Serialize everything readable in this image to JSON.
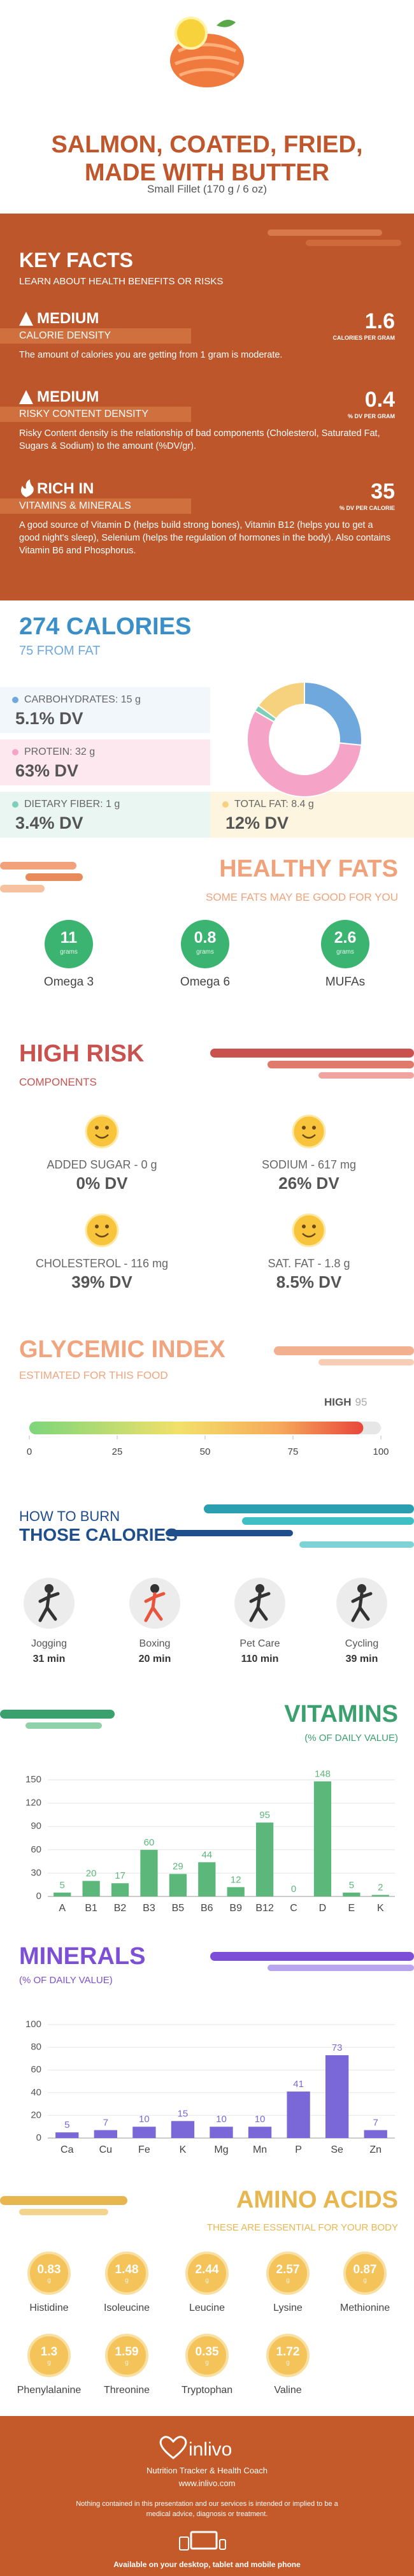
{
  "header": {
    "title": "SALMON, COATED, FRIED, MADE WITH BUTTER",
    "serving": "Small Fillet (170 g / 6 oz)"
  },
  "key_facts": {
    "title": "KEY FACTS",
    "subtitle": "LEARN ABOUT HEALTH BENEFITS OR RISKS",
    "items": [
      {
        "level": "MEDIUM",
        "name": "CALORIE DENSITY",
        "value": 1.6,
        "unit": "CALORIES PER GRAM",
        "text": "The amount of calories you are getting from 1 gram is moderate."
      },
      {
        "level": "MEDIUM",
        "name": "RISKY CONTENT DENSITY",
        "value": 0.4,
        "unit": "% DV PER GRAM",
        "text": "Risky Content density is the relationship of bad components (Cholesterol, Saturated Fat, Sugars & Sodium) to the amount (%DV/gr)."
      },
      {
        "level": "RICH IN",
        "name": "VITAMINS & MINERALS",
        "value": 35,
        "unit": "% DV PER CALORIE",
        "text": "A good source of Vitamin D (helps build strong bones), Vitamin B12 (helps you to get a good night's sleep), Selenium (helps the regulation of hormones in the body). Also contains Vitamin B6 and Phosphorus."
      }
    ]
  },
  "calories": {
    "title": "274 CALORIES",
    "subtitle": "75 FROM FAT",
    "nutrients": [
      {
        "label": "CARBOHYDRATES: 15 g",
        "grams": 15,
        "dv": "5.1% DV",
        "color": "#6ea8dc"
      },
      {
        "label": "PROTEIN: 32 g",
        "grams": 32,
        "dv": "63% DV",
        "color": "#f5a3c7"
      },
      {
        "label": "DIETARY FIBER: 1 g",
        "grams": 1,
        "dv": "3.4% DV",
        "color": "#7fcfb8"
      },
      {
        "label": "TOTAL FAT: 8.4 g",
        "grams": 8.4,
        "dv": "12% DV",
        "color": "#f7d27e"
      }
    ]
  },
  "healthy_fats": {
    "title": "HEALTHY FATS",
    "subtitle": "SOME FATS MAY BE GOOD FOR YOU",
    "items": [
      {
        "value": 11,
        "unit": "grams",
        "name": "Omega 3"
      },
      {
        "value": 0.8,
        "unit": "grams",
        "name": "Omega 6"
      },
      {
        "value": 2.6,
        "unit": "grams",
        "name": "MUFAs"
      }
    ]
  },
  "high_risk": {
    "title": "HIGH RISK",
    "subtitle": "COMPONENTS",
    "items": [
      {
        "label": "ADDED SUGAR - 0 g",
        "dv": "0% DV"
      },
      {
        "label": "SODIUM - 617 mg",
        "dv": "26% DV"
      },
      {
        "label": "CHOLESTEROL - 116 mg",
        "dv": "39% DV"
      },
      {
        "label": "SAT. FAT - 1.8 g",
        "dv": "8.5% DV"
      }
    ]
  },
  "glycemic": {
    "title": "GLYCEMIC INDEX",
    "subtitle": "ESTIMATED FOR THIS FOOD",
    "level": "HIGH",
    "value": 95,
    "lim": [
      0,
      100
    ],
    "ticks": [
      0,
      25,
      50,
      75,
      100
    ]
  },
  "burn": {
    "title_top": "HOW TO BURN",
    "title_bottom": "THOSE CALORIES",
    "activities": [
      {
        "name": "Jogging",
        "time": "31 min"
      },
      {
        "name": "Boxing",
        "time": "20 min"
      },
      {
        "name": "Pet Care",
        "time": "110 min"
      },
      {
        "name": "Cycling",
        "time": "39 min"
      }
    ]
  },
  "chart_data": [
    {
      "type": "bar",
      "title": "VITAMINS",
      "subtitle": "(% OF DAILY VALUE)",
      "categories": [
        "A",
        "B1",
        "B2",
        "B3",
        "B5",
        "B6",
        "B9",
        "B12",
        "C",
        "D",
        "E",
        "K"
      ],
      "values": [
        5,
        20,
        17,
        60,
        29,
        44,
        12,
        95,
        0,
        148,
        5,
        2
      ],
      "color": "#5cb87a",
      "ylim": [
        0,
        150
      ],
      "yticks": [
        0,
        30,
        60,
        90,
        120,
        150
      ],
      "grid": true
    },
    {
      "type": "bar",
      "title": "MINERALS",
      "subtitle": "(% OF DAILY VALUE)",
      "categories": [
        "Ca",
        "Cu",
        "Fe",
        "K",
        "Mg",
        "Mn",
        "P",
        "Se",
        "Zn"
      ],
      "values": [
        5,
        7,
        10,
        15,
        10,
        10,
        41,
        73,
        7
      ],
      "color": "#7b68d8",
      "ylim": [
        0,
        100
      ],
      "yticks": [
        0,
        20,
        40,
        60,
        80,
        100
      ],
      "grid": true
    }
  ],
  "amino_acids": {
    "title": "AMINO ACIDS",
    "subtitle": "THESE ARE ESSENTIAL FOR YOUR BODY",
    "unit": "g",
    "items": [
      {
        "name": "Histidine",
        "value": 0.83
      },
      {
        "name": "Isoleucine",
        "value": 1.48
      },
      {
        "name": "Leucine",
        "value": 2.44
      },
      {
        "name": "Lysine",
        "value": 2.57
      },
      {
        "name": "Methionine",
        "value": 0.87
      },
      {
        "name": "Phenylalanine",
        "value": 1.3
      },
      {
        "name": "Threonine",
        "value": 1.59
      },
      {
        "name": "Tryptophan",
        "value": 0.35
      },
      {
        "name": "Valine",
        "value": 1.72
      }
    ]
  },
  "footer": {
    "brand": "inlivo",
    "tagline": "Nutrition Tracker & Health Coach",
    "url": "www.inlivo.com",
    "disclaimer": "Nothing contained in this presentation and our services is intended or implied to be a medical advice, diagnosis or treatment.",
    "available": "Available on your desktop, tablet and mobile phone"
  }
}
